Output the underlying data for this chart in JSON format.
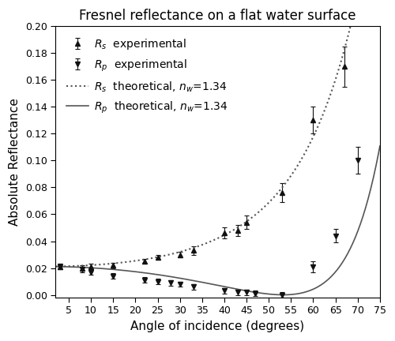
{
  "title": "Fresnel reflectance on a flat water surface",
  "xlabel": "Angle of incidence (degrees)",
  "ylabel": "Absolute Reflectance",
  "n_water": 1.34,
  "xlim": [
    2,
    75
  ],
  "ylim": [
    -0.002,
    0.2
  ],
  "xticks": [
    5,
    10,
    15,
    20,
    25,
    30,
    35,
    40,
    45,
    50,
    55,
    60,
    65,
    70,
    75
  ],
  "yticks": [
    0.0,
    0.02,
    0.04,
    0.06,
    0.08,
    0.1,
    0.12,
    0.14,
    0.16,
    0.18,
    0.2
  ],
  "Rs_exp_x": [
    3,
    8,
    10,
    15,
    22,
    25,
    30,
    33,
    40,
    43,
    45,
    53,
    60,
    67
  ],
  "Rs_exp_y": [
    0.021,
    0.02,
    0.021,
    0.022,
    0.025,
    0.028,
    0.03,
    0.033,
    0.046,
    0.048,
    0.054,
    0.076,
    0.13,
    0.17
  ],
  "Rs_exp_yerr": [
    0.002,
    0.002,
    0.002,
    0.002,
    0.002,
    0.002,
    0.002,
    0.003,
    0.004,
    0.004,
    0.005,
    0.007,
    0.01,
    0.015
  ],
  "Rp_exp_x": [
    3,
    8,
    10,
    15,
    22,
    25,
    28,
    30,
    33,
    40,
    43,
    45,
    47,
    53,
    60,
    65,
    70
  ],
  "Rp_exp_y": [
    0.021,
    0.019,
    0.017,
    0.014,
    0.011,
    0.01,
    0.009,
    0.008,
    0.006,
    0.003,
    0.002,
    0.002,
    0.001,
    0.0,
    0.021,
    0.044,
    0.1
  ],
  "Rp_exp_yerr": [
    0.002,
    0.002,
    0.002,
    0.002,
    0.002,
    0.002,
    0.002,
    0.002,
    0.002,
    0.002,
    0.002,
    0.002,
    0.002,
    0.002,
    0.004,
    0.005,
    0.01
  ],
  "line_color": "#555555",
  "marker_color": "#111111",
  "background_color": "#ffffff",
  "legend_labels_exp_s": "$R_s$  experimental",
  "legend_labels_exp_p": "$R_p$  experimental",
  "legend_labels_theo_s": "$R_s$  theoretical, $n_w$=1.34",
  "legend_labels_theo_p": "$R_p$  theoretical, $n_w$=1.34",
  "title_fontsize": 12,
  "label_fontsize": 11,
  "tick_fontsize": 9,
  "legend_fontsize": 10
}
